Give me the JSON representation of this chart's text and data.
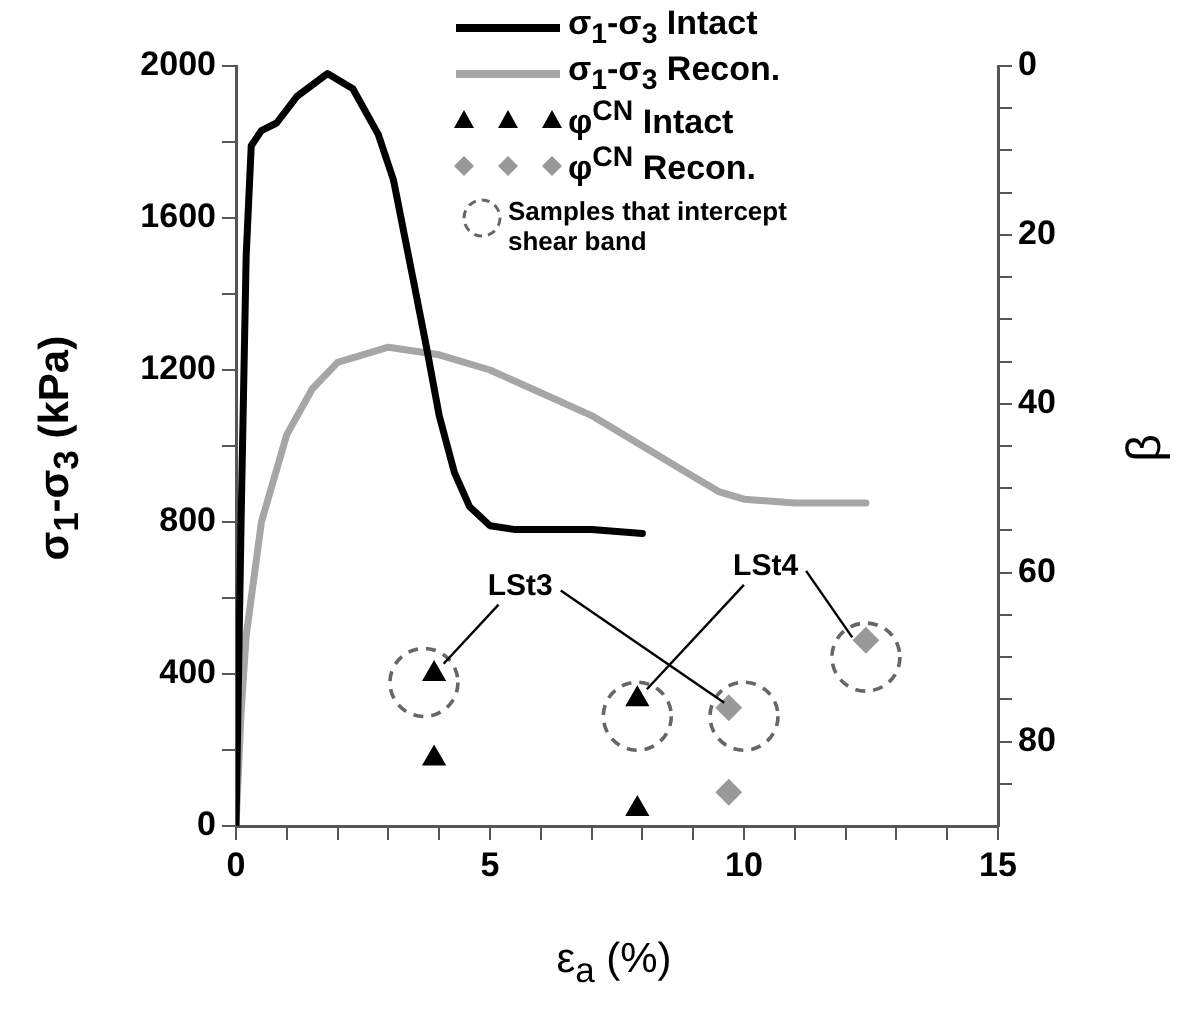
{
  "chart_data": {
    "type": "line",
    "xlabel": "ε$_{a}$ (%)",
    "ylabel": "σ$_{1}$-σ$_{3}$ (kPa)",
    "y2label": "β",
    "xlim": [
      0,
      15
    ],
    "xticks": [
      0,
      {
        "value": 1,
        "label": null
      },
      {
        "value": 2,
        "label": null
      },
      {
        "value": 3,
        "label": null
      },
      {
        "value": 4,
        "label": null
      },
      5,
      {
        "value": 6,
        "label": null
      },
      {
        "value": 7,
        "label": null
      },
      {
        "value": 8,
        "label": null
      },
      {
        "value": 9,
        "label": null
      },
      10,
      {
        "value": 11,
        "label": null
      },
      {
        "value": 12,
        "label": null
      },
      {
        "value": 13,
        "label": null
      },
      {
        "value": 14,
        "label": null
      },
      15
    ],
    "ylim": [
      0,
      2000
    ],
    "yticks": [
      0,
      {
        "value": 200,
        "label": null
      },
      400,
      {
        "value": 600,
        "label": null
      },
      800,
      {
        "value": 1000,
        "label": null
      },
      1200,
      {
        "value": 1400,
        "label": null
      },
      1600,
      {
        "value": 1800,
        "label": null
      },
      2000
    ],
    "y2lim": [
      90,
      0
    ],
    "y2ticks": [
      0,
      {
        "value": 5,
        "label": null
      },
      {
        "value": 10,
        "label": null
      },
      {
        "value": 15,
        "label": null
      },
      20,
      {
        "value": 25,
        "label": null
      },
      {
        "value": 30,
        "label": null
      },
      {
        "value": 35,
        "label": null
      },
      40,
      {
        "value": 45,
        "label": null
      },
      {
        "value": 50,
        "label": null
      },
      {
        "value": 55,
        "label": null
      },
      60,
      {
        "value": 65,
        "label": null
      },
      {
        "value": 70,
        "label": null
      },
      {
        "value": 75,
        "label": null
      },
      80,
      {
        "value": 85,
        "label": null
      }
    ],
    "grid": false,
    "legend": "top right",
    "series": [
      {
        "name": "σ$_{1}$-σ$_{3}$ Intact",
        "color": "#000000",
        "marker": "none",
        "line_style": "solid",
        "x": [
          0,
          0.1,
          0.2,
          0.3,
          0.5,
          0.8,
          1.2,
          1.8,
          2.3,
          2.8,
          3.1,
          3.5,
          3.75,
          4.0,
          4.3,
          4.6,
          5.0,
          5.5,
          6.0,
          7.0,
          8.0
        ],
        "values": [
          0,
          800,
          1500,
          1790,
          1830,
          1850,
          1920,
          1980,
          1940,
          1820,
          1700,
          1430,
          1260,
          1080,
          930,
          840,
          790,
          780,
          780,
          780,
          770
        ]
      },
      {
        "name": "σ$_{1}$-σ$_{3}$ Recon.",
        "color": "#a6a6a6",
        "marker": "none",
        "line_style": "solid",
        "x": [
          0,
          0.1,
          0.2,
          0.5,
          1,
          1.5,
          2,
          3,
          4,
          5,
          6,
          7,
          8,
          9,
          9.5,
          10,
          11,
          12,
          12.4
        ],
        "values": [
          0,
          300,
          500,
          800,
          1030,
          1150,
          1220,
          1260,
          1240,
          1200,
          1140,
          1080,
          1000,
          920,
          880,
          860,
          850,
          850,
          850
        ]
      },
      {
        "name": "φ$^{CN}$ Intact",
        "type": "scatter",
        "axis": "y2",
        "color": "#000000",
        "marker": "triangle",
        "x": [
          3.9,
          3.9,
          7.9,
          7.9
        ],
        "values": [
          72,
          82,
          75,
          88
        ]
      },
      {
        "name": "φ$^{CN}$ Recon.",
        "type": "scatter",
        "axis": "y2",
        "color": "#999999",
        "marker": "diamond",
        "x": [
          9.7,
          9.7,
          12.4
        ],
        "values": [
          76,
          86,
          68
        ]
      },
      {
        "name": "Samples that intercept shear band",
        "type": "scatter",
        "axis": "y2",
        "color": "#666666",
        "marker": "circle",
        "line_style": "dashed",
        "x": [
          3.7,
          7.9,
          10.0,
          12.4
        ],
        "values": [
          73,
          77,
          77,
          70
        ]
      }
    ],
    "annotations": [
      {
        "text": "LSt3",
        "x": 3.9,
        "y": 400
      },
      {
        "text": "LSt4",
        "x": 7.9,
        "y": 333
      }
    ]
  }
}
